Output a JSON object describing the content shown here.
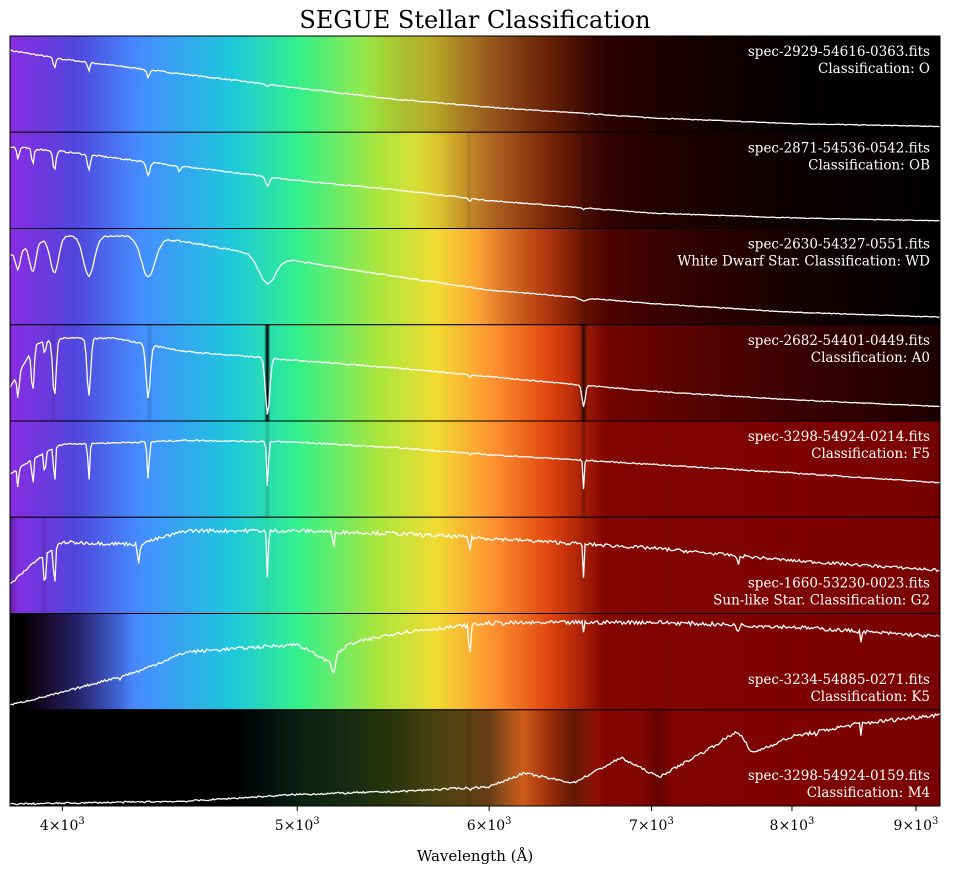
{
  "chart_data": {
    "type": "line",
    "title": "SEGUE Stellar Classification",
    "xlabel": "Wavelength (Å)",
    "xscale": "log",
    "xlim": [
      3806,
      9208
    ],
    "xticks": [
      {
        "value": 4000,
        "mantissa": "4",
        "base": "10",
        "exp": "3"
      },
      {
        "value": 5000,
        "mantissa": "5",
        "base": "10",
        "exp": "3"
      },
      {
        "value": 6000,
        "mantissa": "6",
        "base": "10",
        "exp": "3"
      },
      {
        "value": 7000,
        "mantissa": "7",
        "base": "10",
        "exp": "3"
      },
      {
        "value": 8000,
        "mantissa": "8",
        "base": "10",
        "exp": "3"
      },
      {
        "value": 9000,
        "mantissa": "9",
        "base": "10",
        "exp": "3"
      }
    ],
    "grid": false,
    "line_color": "#ffffff",
    "background": "wavelength-colored spectrum, brightness scaled by flux",
    "panels": [
      {
        "file": "spec-2929-54616-0363.fits",
        "label": "Classification: O",
        "label_position": "top-right",
        "continuum": [
          [
            3806,
            0.85
          ],
          [
            4000,
            0.76
          ],
          [
            4500,
            0.6
          ],
          [
            5000,
            0.46
          ],
          [
            5500,
            0.34
          ],
          [
            6000,
            0.26
          ],
          [
            7000,
            0.15
          ],
          [
            8000,
            0.09
          ],
          [
            9200,
            0.06
          ]
        ],
        "lines": [
          [
            3970,
            0.15,
            6
          ],
          [
            4102,
            0.12,
            6
          ],
          [
            4340,
            0.12,
            8
          ],
          [
            4861,
            0.06,
            8
          ],
          [
            5577,
            -0.3,
            2
          ]
        ]
      },
      {
        "file": "spec-2871-54536-0542.fits",
        "label": "Classification: OB",
        "label_position": "top-right",
        "continuum": [
          [
            3806,
            0.85
          ],
          [
            4000,
            0.8
          ],
          [
            4500,
            0.64
          ],
          [
            5000,
            0.5
          ],
          [
            5500,
            0.4
          ],
          [
            6000,
            0.29
          ],
          [
            7000,
            0.16
          ],
          [
            8000,
            0.11
          ],
          [
            9200,
            0.08
          ]
        ],
        "lines": [
          [
            3835,
            0.15,
            6
          ],
          [
            3889,
            0.2,
            6
          ],
          [
            3970,
            0.25,
            8
          ],
          [
            4102,
            0.2,
            8
          ],
          [
            4340,
            0.2,
            10
          ],
          [
            4471,
            0.1,
            6
          ],
          [
            4861,
            0.18,
            12
          ],
          [
            5890,
            0.15,
            6
          ],
          [
            6563,
            0.1,
            10
          ]
        ]
      },
      {
        "file": "spec-2630-54327-0551.fits",
        "label": "White Dwarf Star. Classification: WD",
        "label_position": "top-right",
        "continuum": [
          [
            3806,
            0.72
          ],
          [
            3900,
            0.86
          ],
          [
            4000,
            0.92
          ],
          [
            4300,
            0.92
          ],
          [
            4500,
            0.86
          ],
          [
            5000,
            0.66
          ],
          [
            5500,
            0.5
          ],
          [
            6000,
            0.36
          ],
          [
            7000,
            0.22
          ],
          [
            8000,
            0.13
          ],
          [
            9200,
            0.08
          ]
        ],
        "lines": [
          [
            3835,
            0.25,
            12
          ],
          [
            3889,
            0.35,
            16
          ],
          [
            3970,
            0.4,
            22
          ],
          [
            4102,
            0.45,
            30
          ],
          [
            4340,
            0.45,
            40
          ],
          [
            4861,
            0.4,
            55
          ],
          [
            6563,
            0.1,
            35
          ]
        ]
      },
      {
        "file": "spec-2682-54401-0449.fits",
        "label": "Classification: A0",
        "label_position": "top-right",
        "continuum": [
          [
            3806,
            0.35
          ],
          [
            3900,
            0.8
          ],
          [
            4000,
            0.86
          ],
          [
            4200,
            0.86
          ],
          [
            4500,
            0.72
          ],
          [
            5000,
            0.63
          ],
          [
            5500,
            0.55
          ],
          [
            6000,
            0.46
          ],
          [
            7000,
            0.31
          ],
          [
            8000,
            0.22
          ],
          [
            9200,
            0.15
          ]
        ],
        "lines": [
          [
            3835,
            0.5,
            6
          ],
          [
            3889,
            0.6,
            7
          ],
          [
            3934,
            0.3,
            3
          ],
          [
            3970,
            0.7,
            9
          ],
          [
            4102,
            0.7,
            10
          ],
          [
            4340,
            0.7,
            12
          ],
          [
            4861,
            0.9,
            14
          ],
          [
            5890,
            0.1,
            4
          ],
          [
            6563,
            0.6,
            14
          ]
        ]
      },
      {
        "file": "spec-3298-54924-0214.fits",
        "label": "Classification: F5",
        "label_position": "top-right",
        "continuum": [
          [
            3806,
            0.45
          ],
          [
            3900,
            0.62
          ],
          [
            4000,
            0.76
          ],
          [
            4300,
            0.78
          ],
          [
            4500,
            0.8
          ],
          [
            5000,
            0.78
          ],
          [
            5500,
            0.72
          ],
          [
            6000,
            0.65
          ],
          [
            7000,
            0.55
          ],
          [
            8000,
            0.46
          ],
          [
            9200,
            0.36
          ]
        ],
        "lines": [
          [
            3835,
            0.4,
            4
          ],
          [
            3889,
            0.5,
            4
          ],
          [
            3934,
            0.6,
            3
          ],
          [
            3970,
            0.6,
            4
          ],
          [
            4102,
            0.5,
            5
          ],
          [
            4340,
            0.5,
            6
          ],
          [
            4861,
            0.6,
            6
          ],
          [
            5890,
            0.1,
            3
          ],
          [
            6563,
            0.5,
            6
          ]
        ]
      },
      {
        "file": "spec-1660-53230-0023.fits",
        "label": "Sun-like Star. Classification: G2",
        "label_position": "bottom-right",
        "continuum": [
          [
            3806,
            0.3
          ],
          [
            3900,
            0.55
          ],
          [
            4000,
            0.74
          ],
          [
            4300,
            0.72
          ],
          [
            4500,
            0.86
          ],
          [
            5000,
            0.86
          ],
          [
            5500,
            0.83
          ],
          [
            6000,
            0.78
          ],
          [
            7000,
            0.68
          ],
          [
            8000,
            0.55
          ],
          [
            9200,
            0.45
          ]
        ],
        "lines": [
          [
            3934,
            0.6,
            5
          ],
          [
            3970,
            0.6,
            5
          ],
          [
            4300,
            0.3,
            6
          ],
          [
            4861,
            0.6,
            5
          ],
          [
            5175,
            0.2,
            6
          ],
          [
            5890,
            0.4,
            4
          ],
          [
            6563,
            0.5,
            5
          ],
          [
            7600,
            0.2,
            8
          ]
        ]
      },
      {
        "file": "spec-3234-54885-0271.fits",
        "label": "Classification: K5",
        "label_position": "bottom-right",
        "continuum": [
          [
            3806,
            0.05
          ],
          [
            4000,
            0.18
          ],
          [
            4300,
            0.4
          ],
          [
            4500,
            0.6
          ],
          [
            5000,
            0.68
          ],
          [
            5150,
            0.5
          ],
          [
            5250,
            0.68
          ],
          [
            5500,
            0.8
          ],
          [
            6000,
            0.9
          ],
          [
            7000,
            0.91
          ],
          [
            8000,
            0.86
          ],
          [
            9200,
            0.76
          ]
        ],
        "lines": [
          [
            4227,
            0.15,
            4
          ],
          [
            5175,
            0.3,
            12
          ],
          [
            5890,
            0.6,
            5
          ],
          [
            6563,
            0.1,
            4
          ],
          [
            7600,
            0.1,
            8
          ],
          [
            8542,
            0.15,
            4
          ],
          [
            8662,
            0.15,
            4
          ]
        ]
      },
      {
        "file": "spec-3298-54924-0159.fits",
        "label": "Classification: M4",
        "label_position": "bottom-right",
        "continuum": [
          [
            3806,
            0.02
          ],
          [
            4500,
            0.05
          ],
          [
            5000,
            0.12
          ],
          [
            5500,
            0.15
          ],
          [
            6000,
            0.2
          ],
          [
            6200,
            0.34
          ],
          [
            6500,
            0.24
          ],
          [
            6800,
            0.5
          ],
          [
            7050,
            0.3
          ],
          [
            7400,
            0.6
          ],
          [
            7600,
            0.78
          ],
          [
            7700,
            0.55
          ],
          [
            8000,
            0.72
          ],
          [
            8500,
            0.85
          ],
          [
            9200,
            0.95
          ]
        ],
        "lines": [
          [
            5890,
            0.3,
            4
          ],
          [
            8190,
            0.2,
            5
          ],
          [
            8542,
            0.15,
            4
          ]
        ]
      }
    ]
  }
}
